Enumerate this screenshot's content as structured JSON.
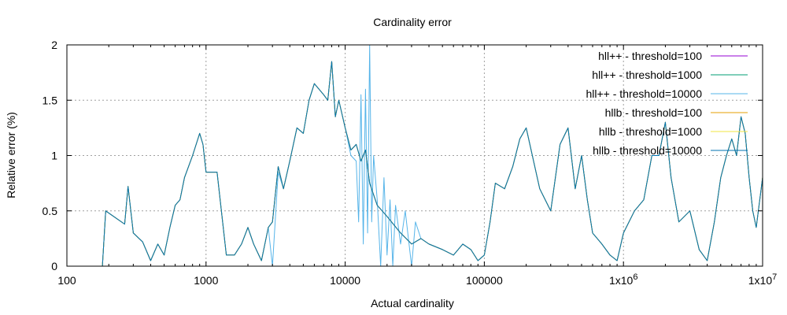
{
  "chart_data": {
    "type": "line",
    "title": "Cardinality error",
    "xlabel": "Actual cardinality",
    "ylabel": "Relative error (%)",
    "x_scale": "log",
    "xlim": [
      100,
      10000000
    ],
    "ylim": [
      0,
      2
    ],
    "grid": true,
    "legend_position": "top-right",
    "x_ticks": [
      {
        "value": 100,
        "label": "100"
      },
      {
        "value": 1000,
        "label": "1000"
      },
      {
        "value": 10000,
        "label": "10000"
      },
      {
        "value": 100000,
        "label": "100000"
      },
      {
        "value": 1000000,
        "label": "1x10",
        "exp": "6"
      },
      {
        "value": 10000000,
        "label": "1x10",
        "exp": "7"
      }
    ],
    "y_ticks": [
      {
        "value": 0,
        "label": "0"
      },
      {
        "value": 0.5,
        "label": "0.5"
      },
      {
        "value": 1,
        "label": "1"
      },
      {
        "value": 1.5,
        "label": "1.5"
      },
      {
        "value": 2,
        "label": "2"
      }
    ],
    "base_x": [
      180,
      190,
      260,
      275,
      300,
      350,
      400,
      450,
      500,
      550,
      600,
      650,
      700,
      800,
      900,
      950,
      1000,
      1200,
      1400,
      1600,
      1800,
      2000,
      2200,
      2500,
      2800,
      3000,
      3300,
      3600,
      4000,
      4500,
      5000,
      5500,
      6000,
      7000,
      7500,
      8000,
      8500,
      9000,
      10000,
      11000,
      12000,
      13000,
      14000,
      15000,
      17000,
      20000,
      25000,
      30000,
      35000,
      40000,
      50000,
      60000,
      70000,
      80000,
      90000,
      100000,
      110000,
      120000,
      140000,
      160000,
      180000,
      200000,
      250000,
      300000,
      350000,
      400000,
      450000,
      500000,
      550000,
      600000,
      700000,
      800000,
      900000,
      1000000,
      1200000,
      1400000,
      1600000,
      1800000,
      2000000,
      2200000,
      2500000,
      3000000,
      3500000,
      4000000,
      4500000,
      5000000,
      5500000,
      6000000,
      6500000,
      7000000,
      7500000,
      8000000,
      8500000,
      9000000,
      10000000
    ],
    "series": [
      {
        "name": "hll++ - threshold=100",
        "color": "#9400d3",
        "values": [
          0.0,
          0.5,
          0.38,
          0.72,
          0.3,
          0.22,
          0.05,
          0.2,
          0.1,
          0.35,
          0.55,
          0.6,
          0.8,
          1.0,
          1.2,
          1.1,
          0.85,
          0.85,
          0.1,
          0.1,
          0.2,
          0.35,
          0.2,
          0.05,
          0.35,
          0.4,
          0.9,
          0.7,
          0.95,
          1.25,
          1.2,
          1.5,
          1.65,
          1.55,
          1.5,
          1.85,
          1.35,
          1.5,
          1.25,
          1.05,
          1.1,
          0.95,
          1.05,
          0.75,
          0.55,
          0.45,
          0.3,
          0.2,
          0.25,
          0.2,
          0.15,
          0.1,
          0.2,
          0.15,
          0.05,
          0.1,
          0.4,
          0.75,
          0.7,
          0.9,
          1.15,
          1.25,
          0.7,
          0.5,
          1.1,
          1.25,
          0.7,
          1.0,
          0.6,
          0.3,
          0.2,
          0.1,
          0.05,
          0.3,
          0.5,
          0.6,
          1.0,
          1.0,
          1.3,
          0.8,
          0.4,
          0.5,
          0.15,
          0.05,
          0.4,
          0.8,
          1.0,
          1.15,
          1.0,
          1.35,
          1.2,
          0.8,
          0.5,
          0.35,
          0.8
        ]
      },
      {
        "name": "hll++ - threshold=1000",
        "color": "#009e73",
        "values": [
          0.0,
          0.5,
          0.38,
          0.72,
          0.3,
          0.22,
          0.05,
          0.2,
          0.1,
          0.35,
          0.55,
          0.6,
          0.8,
          1.0,
          1.2,
          1.1,
          0.85,
          0.85,
          0.1,
          0.1,
          0.2,
          0.35,
          0.2,
          0.05,
          0.35,
          0.4,
          0.9,
          0.7,
          0.95,
          1.25,
          1.2,
          1.5,
          1.65,
          1.55,
          1.5,
          1.85,
          1.35,
          1.5,
          1.25,
          1.05,
          1.1,
          0.95,
          1.05,
          0.75,
          0.55,
          0.45,
          0.3,
          0.2,
          0.25,
          0.2,
          0.15,
          0.1,
          0.2,
          0.15,
          0.05,
          0.1,
          0.4,
          0.75,
          0.7,
          0.9,
          1.15,
          1.25,
          0.7,
          0.5,
          1.1,
          1.25,
          0.7,
          1.0,
          0.6,
          0.3,
          0.2,
          0.1,
          0.05,
          0.3,
          0.5,
          0.6,
          1.0,
          1.0,
          1.3,
          0.8,
          0.4,
          0.5,
          0.15,
          0.05,
          0.4,
          0.8,
          1.0,
          1.15,
          1.0,
          1.35,
          1.2,
          0.8,
          0.5,
          0.35,
          0.8
        ]
      },
      {
        "name": "hll++ - threshold=10000",
        "color": "#56b4e9",
        "x": [
          180,
          190,
          260,
          275,
          300,
          350,
          400,
          450,
          500,
          550,
          600,
          650,
          700,
          800,
          900,
          950,
          1000,
          1200,
          1400,
          1600,
          1800,
          2000,
          2200,
          2500,
          2800,
          3000,
          3300,
          3600,
          4000,
          4500,
          5000,
          5500,
          6000,
          7000,
          7500,
          8000,
          8500,
          9000,
          10000,
          11000,
          12000,
          12500,
          13000,
          13500,
          14000,
          14500,
          15000,
          15500,
          16000,
          17000,
          18000,
          19000,
          20000,
          21000,
          22000,
          23000,
          25000,
          27000,
          30000,
          32000,
          35000,
          40000,
          50000,
          60000,
          70000,
          80000,
          90000,
          100000,
          110000,
          120000,
          140000,
          160000,
          180000,
          200000,
          250000,
          300000,
          350000,
          400000,
          450000,
          500000,
          550000,
          600000,
          700000,
          800000,
          900000,
          1000000,
          1200000,
          1400000,
          1600000,
          1800000,
          2000000,
          2200000,
          2500000,
          3000000,
          3500000,
          4000000,
          4500000,
          5000000,
          5500000,
          6000000,
          6500000,
          7000000,
          7500000,
          8000000,
          8500000,
          9000000,
          10000000
        ],
        "values": [
          0.0,
          0.5,
          0.38,
          0.72,
          0.3,
          0.22,
          0.05,
          0.2,
          0.1,
          0.35,
          0.55,
          0.6,
          0.8,
          1.0,
          1.2,
          1.1,
          0.85,
          0.85,
          0.1,
          0.1,
          0.2,
          0.35,
          0.2,
          0.05,
          0.35,
          0.0,
          0.85,
          0.7,
          0.95,
          1.25,
          1.2,
          1.5,
          1.65,
          1.55,
          1.5,
          1.85,
          1.35,
          1.5,
          1.25,
          1.0,
          0.95,
          0.4,
          1.55,
          0.2,
          1.6,
          0.3,
          2.0,
          0.4,
          1.0,
          0.6,
          0.0,
          0.8,
          0.1,
          0.6,
          0.0,
          0.55,
          0.2,
          0.5,
          0.0,
          0.4,
          0.25,
          0.2,
          0.15,
          0.1,
          0.2,
          0.15,
          0.05,
          0.1,
          0.4,
          0.75,
          0.7,
          0.9,
          1.15,
          1.25,
          0.7,
          0.5,
          1.1,
          1.25,
          0.7,
          1.0,
          0.6,
          0.3,
          0.2,
          0.1,
          0.05,
          0.3,
          0.5,
          0.6,
          1.0,
          1.0,
          1.3,
          0.8,
          0.4,
          0.5,
          0.15,
          0.05,
          0.4,
          0.8,
          1.0,
          1.15,
          1.0,
          1.35,
          1.2,
          0.8,
          0.5,
          0.35,
          0.8
        ]
      },
      {
        "name": "hllb - threshold=100",
        "color": "#e69f00",
        "values": [
          0.0,
          0.5,
          0.38,
          0.72,
          0.3,
          0.22,
          0.05,
          0.2,
          0.1,
          0.35,
          0.55,
          0.6,
          0.8,
          1.0,
          1.2,
          1.1,
          0.85,
          0.85,
          0.1,
          0.1,
          0.2,
          0.35,
          0.2,
          0.05,
          0.35,
          0.4,
          0.9,
          0.7,
          0.95,
          1.25,
          1.2,
          1.5,
          1.65,
          1.55,
          1.5,
          1.85,
          1.35,
          1.5,
          1.25,
          1.05,
          1.1,
          0.95,
          1.05,
          0.75,
          0.55,
          0.45,
          0.3,
          0.2,
          0.25,
          0.2,
          0.15,
          0.1,
          0.2,
          0.15,
          0.05,
          0.1,
          0.4,
          0.75,
          0.7,
          0.9,
          1.15,
          1.25,
          0.7,
          0.5,
          1.1,
          1.25,
          0.7,
          1.0,
          0.6,
          0.3,
          0.2,
          0.1,
          0.05,
          0.3,
          0.5,
          0.6,
          1.0,
          1.0,
          1.3,
          0.8,
          0.4,
          0.5,
          0.15,
          0.05,
          0.4,
          0.8,
          1.0,
          1.15,
          1.0,
          1.35,
          1.2,
          0.8,
          0.5,
          0.35,
          0.8
        ]
      },
      {
        "name": "hllb - threshold=1000",
        "color": "#f0e442",
        "values": [
          0.0,
          0.5,
          0.38,
          0.72,
          0.3,
          0.22,
          0.05,
          0.2,
          0.1,
          0.35,
          0.55,
          0.6,
          0.8,
          1.0,
          1.2,
          1.1,
          0.85,
          0.85,
          0.1,
          0.1,
          0.2,
          0.35,
          0.2,
          0.05,
          0.35,
          0.4,
          0.9,
          0.7,
          0.95,
          1.25,
          1.2,
          1.5,
          1.65,
          1.55,
          1.5,
          1.85,
          1.35,
          1.5,
          1.25,
          1.05,
          1.1,
          0.95,
          1.05,
          0.75,
          0.55,
          0.45,
          0.3,
          0.2,
          0.25,
          0.2,
          0.15,
          0.1,
          0.2,
          0.15,
          0.05,
          0.1,
          0.4,
          0.75,
          0.7,
          0.9,
          1.15,
          1.25,
          0.7,
          0.5,
          1.1,
          1.25,
          0.7,
          1.0,
          0.6,
          0.3,
          0.2,
          0.1,
          0.05,
          0.3,
          0.5,
          0.6,
          1.0,
          1.0,
          1.3,
          0.8,
          0.4,
          0.5,
          0.15,
          0.05,
          0.4,
          0.8,
          1.0,
          1.15,
          1.0,
          1.35,
          1.2,
          0.8,
          0.5,
          0.35,
          0.8
        ]
      },
      {
        "name": "hllb - threshold=10000",
        "color": "#0072b2",
        "values": [
          0.0,
          0.5,
          0.38,
          0.72,
          0.3,
          0.22,
          0.05,
          0.2,
          0.1,
          0.35,
          0.55,
          0.6,
          0.8,
          1.0,
          1.2,
          1.1,
          0.85,
          0.85,
          0.1,
          0.1,
          0.2,
          0.35,
          0.2,
          0.05,
          0.35,
          0.4,
          0.9,
          0.7,
          0.95,
          1.25,
          1.2,
          1.5,
          1.65,
          1.55,
          1.5,
          1.85,
          1.35,
          1.5,
          1.25,
          1.05,
          1.1,
          0.95,
          1.05,
          0.75,
          0.55,
          0.45,
          0.3,
          0.2,
          0.25,
          0.2,
          0.15,
          0.1,
          0.2,
          0.15,
          0.05,
          0.1,
          0.4,
          0.75,
          0.7,
          0.9,
          1.15,
          1.25,
          0.7,
          0.5,
          1.1,
          1.25,
          0.7,
          1.0,
          0.6,
          0.3,
          0.2,
          0.1,
          0.05,
          0.3,
          0.5,
          0.6,
          1.0,
          1.0,
          1.3,
          0.8,
          0.4,
          0.5,
          0.15,
          0.05,
          0.4,
          0.8,
          1.0,
          1.15,
          1.0,
          1.35,
          1.2,
          0.8,
          0.5,
          0.35,
          0.8
        ]
      }
    ]
  }
}
